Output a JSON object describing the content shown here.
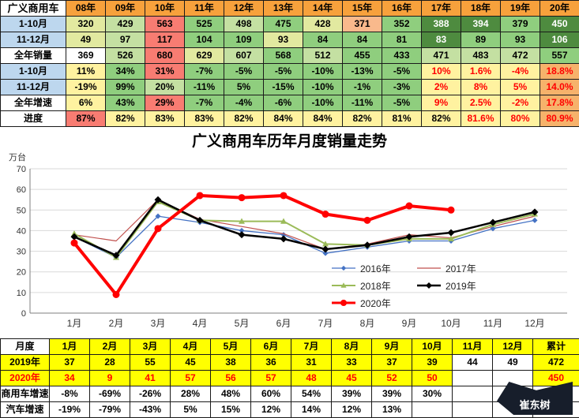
{
  "palette": {
    "dkgreen": "#4e8b3f",
    "green": "#8fce7e",
    "ltgreen": "#c4e0a2",
    "ylgreen": "#e2e9a0",
    "yellow": "#fff2a0",
    "orange": "#f6b26b",
    "peach": "#f9b98c",
    "salmon": "#f87c72",
    "white": "#ffffff",
    "blue": "#bdd7ee",
    "hdr_orange": "#f7a13c",
    "table_yellow": "#ffff00"
  },
  "top_table": {
    "title_cell": "广义商用车",
    "years": [
      "08年",
      "09年",
      "10年",
      "11年",
      "12年",
      "13年",
      "14年",
      "15年",
      "16年",
      "17年",
      "18年",
      "19年",
      "20年"
    ],
    "rows": [
      {
        "label": "1-10月",
        "lbg": "blue",
        "cells": [
          [
            "320",
            "ylgreen",
            "k"
          ],
          [
            "429",
            "ltgreen",
            "k"
          ],
          [
            "563",
            "salmon",
            "k"
          ],
          [
            "525",
            "green",
            "k"
          ],
          [
            "498",
            "ltgreen",
            "k"
          ],
          [
            "475",
            "green",
            "k"
          ],
          [
            "428",
            "ylgreen",
            "k"
          ],
          [
            "371",
            "peach",
            "k"
          ],
          [
            "352",
            "green",
            "k"
          ],
          [
            "388",
            "dkgreen",
            "w"
          ],
          [
            "394",
            "dkgreen",
            "w"
          ],
          [
            "379",
            "green",
            "k"
          ],
          [
            "450",
            "dkgreen",
            "w"
          ]
        ]
      },
      {
        "label": "11-12月",
        "lbg": "blue",
        "cells": [
          [
            "49",
            "ylgreen",
            "k"
          ],
          [
            "97",
            "ltgreen",
            "k"
          ],
          [
            "117",
            "salmon",
            "k"
          ],
          [
            "104",
            "green",
            "k"
          ],
          [
            "109",
            "green",
            "k"
          ],
          [
            "93",
            "ylgreen",
            "k"
          ],
          [
            "84",
            "green",
            "k"
          ],
          [
            "84",
            "green",
            "k"
          ],
          [
            "81",
            "green",
            "k"
          ],
          [
            "83",
            "dkgreen",
            "w"
          ],
          [
            "89",
            "green",
            "k"
          ],
          [
            "93",
            "green",
            "k"
          ],
          [
            "106",
            "dkgreen",
            "w"
          ]
        ]
      },
      {
        "label": "全年销量",
        "lbg": "white",
        "cells": [
          [
            "369",
            "white",
            "k"
          ],
          [
            "526",
            "ltgreen",
            "k"
          ],
          [
            "680",
            "salmon",
            "k"
          ],
          [
            "629",
            "ylgreen",
            "k"
          ],
          [
            "607",
            "ltgreen",
            "k"
          ],
          [
            "568",
            "green",
            "k"
          ],
          [
            "512",
            "ltgreen",
            "k"
          ],
          [
            "455",
            "green",
            "k"
          ],
          [
            "433",
            "green",
            "k"
          ],
          [
            "471",
            "ltgreen",
            "k"
          ],
          [
            "483",
            "ltgreen",
            "k"
          ],
          [
            "472",
            "ltgreen",
            "k"
          ],
          [
            "557",
            "green",
            "k"
          ]
        ]
      },
      {
        "label": "1-10月",
        "lbg": "blue",
        "cells": [
          [
            "11%",
            "yellow",
            "k"
          ],
          [
            "34%",
            "green",
            "k"
          ],
          [
            "31%",
            "salmon",
            "k"
          ],
          [
            "-7%",
            "green",
            "k"
          ],
          [
            "-5%",
            "green",
            "k"
          ],
          [
            "-5%",
            "green",
            "k"
          ],
          [
            "-10%",
            "green",
            "k"
          ],
          [
            "-13%",
            "green",
            "k"
          ],
          [
            "-5%",
            "green",
            "k"
          ],
          [
            "10%",
            "yellow",
            "r"
          ],
          [
            "1.6%",
            "yellow",
            "r"
          ],
          [
            "-4%",
            "yellow",
            "r"
          ],
          [
            "18.8%",
            "orange",
            "r"
          ]
        ]
      },
      {
        "label": "11-12月",
        "lbg": "blue",
        "cells": [
          [
            "-19%",
            "yellow",
            "k"
          ],
          [
            "99%",
            "green",
            "k"
          ],
          [
            "20%",
            "ltgreen",
            "k"
          ],
          [
            "-11%",
            "green",
            "k"
          ],
          [
            "5%",
            "green",
            "k"
          ],
          [
            "-15%",
            "green",
            "k"
          ],
          [
            "-10%",
            "green",
            "k"
          ],
          [
            "-1%",
            "green",
            "k"
          ],
          [
            "-3%",
            "green",
            "k"
          ],
          [
            "2%",
            "yellow",
            "r"
          ],
          [
            "8%",
            "yellow",
            "r"
          ],
          [
            "5%",
            "yellow",
            "r"
          ],
          [
            "14.0%",
            "orange",
            "r"
          ]
        ]
      },
      {
        "label": "全年增速",
        "lbg": "white",
        "cells": [
          [
            "6%",
            "yellow",
            "k"
          ],
          [
            "43%",
            "green",
            "k"
          ],
          [
            "29%",
            "salmon",
            "k"
          ],
          [
            "-7%",
            "green",
            "k"
          ],
          [
            "-4%",
            "green",
            "k"
          ],
          [
            "-6%",
            "green",
            "k"
          ],
          [
            "-10%",
            "green",
            "k"
          ],
          [
            "-11%",
            "green",
            "k"
          ],
          [
            "-5%",
            "green",
            "k"
          ],
          [
            "9%",
            "yellow",
            "r"
          ],
          [
            "2.5%",
            "yellow",
            "r"
          ],
          [
            "-2%",
            "yellow",
            "r"
          ],
          [
            "17.8%",
            "orange",
            "r"
          ]
        ]
      },
      {
        "label": "进度",
        "lbg": "white",
        "cells": [
          [
            "87%",
            "salmon",
            "k"
          ],
          [
            "82%",
            "yellow",
            "k"
          ],
          [
            "83%",
            "yellow",
            "k"
          ],
          [
            "83%",
            "yellow",
            "k"
          ],
          [
            "82%",
            "yellow",
            "k"
          ],
          [
            "84%",
            "yellow",
            "k"
          ],
          [
            "84%",
            "yellow",
            "k"
          ],
          [
            "82%",
            "yellow",
            "k"
          ],
          [
            "81%",
            "yellow",
            "k"
          ],
          [
            "82%",
            "yellow",
            "k"
          ],
          [
            "81.6%",
            "yellow",
            "r"
          ],
          [
            "80%",
            "yellow",
            "r"
          ],
          [
            "80.9%",
            "orange",
            "r"
          ]
        ]
      }
    ]
  },
  "chart_data": {
    "type": "line",
    "title": "广义商用车历年月度销量走势",
    "y_unit": "万台",
    "x_labels": [
      "1月",
      "2月",
      "3月",
      "4月",
      "5月",
      "6月",
      "7月",
      "8月",
      "9月",
      "10月",
      "11月",
      "12月"
    ],
    "ylim": [
      0,
      70
    ],
    "ytick_step": 10,
    "grid": true,
    "legend_position": "inside-lower-right",
    "series": [
      {
        "name": "2016年",
        "color": "#4472c4",
        "width": 1.3,
        "marker": "diamond",
        "marker_size": 3.5,
        "values": [
          37,
          27,
          47,
          44,
          40,
          38,
          29,
          32,
          35,
          35,
          41,
          45
        ]
      },
      {
        "name": "2017年",
        "color": "#c0504d",
        "width": 1.2,
        "marker": "none",
        "marker_size": 0,
        "values": [
          38,
          35,
          55,
          45.5,
          42,
          38.5,
          31,
          33.5,
          38,
          36.5,
          42,
          47
        ]
      },
      {
        "name": "2018年",
        "color": "#9bbb59",
        "width": 2,
        "marker": "triangle",
        "marker_size": 4.2,
        "values": [
          38.5,
          27,
          54,
          45,
          44.5,
          44.5,
          33.5,
          33,
          36,
          36,
          43,
          48
        ]
      },
      {
        "name": "2019年",
        "color": "#000000",
        "width": 2.5,
        "marker": "diamond",
        "marker_size": 4.5,
        "values": [
          37,
          28,
          55,
          45,
          38,
          36,
          31,
          33,
          37,
          39,
          44,
          49
        ]
      },
      {
        "name": "2020年",
        "color": "#ff0000",
        "width": 4,
        "marker": "circle",
        "marker_size": 4.5,
        "values": [
          34,
          9,
          41,
          57,
          56,
          57,
          48,
          45,
          52,
          50
        ]
      }
    ]
  },
  "bottom_table": {
    "header": [
      "月度",
      "1月",
      "2月",
      "3月",
      "4月",
      "5月",
      "6月",
      "7月",
      "8月",
      "9月",
      "10月",
      "11月",
      "12月",
      "累计"
    ],
    "rows": [
      {
        "label": "2019年",
        "lbg": "y",
        "fg": "k",
        "values": [
          "37",
          "28",
          "55",
          "45",
          "38",
          "36",
          "31",
          "33",
          "37",
          "39",
          "44",
          "49",
          "472"
        ],
        "bgs": [
          "y",
          "y",
          "y",
          "y",
          "y",
          "y",
          "y",
          "y",
          "y",
          "y",
          "w",
          "w",
          "y"
        ]
      },
      {
        "label": "2020年",
        "lbg": "y",
        "fg": "r",
        "values": [
          "34",
          "9",
          "41",
          "57",
          "56",
          "57",
          "48",
          "45",
          "52",
          "50",
          "",
          "",
          "450"
        ],
        "bgs": [
          "y",
          "y",
          "y",
          "y",
          "y",
          "y",
          "y",
          "y",
          "y",
          "y",
          "w",
          "w",
          "y"
        ]
      },
      {
        "label": "商用车增速",
        "lbg": "w",
        "fg": "k",
        "values": [
          "-8%",
          "-69%",
          "-26%",
          "28%",
          "48%",
          "60%",
          "54%",
          "39%",
          "39%",
          "30%",
          "",
          "",
          ""
        ],
        "bgs": [
          "w",
          "w",
          "w",
          "w",
          "w",
          "w",
          "w",
          "w",
          "w",
          "w",
          "w",
          "w",
          "w"
        ]
      },
      {
        "label": "汽车增速",
        "lbg": "w",
        "fg": "k",
        "values": [
          "-19%",
          "-79%",
          "-43%",
          "5%",
          "15%",
          "12%",
          "14%",
          "12%",
          "13%",
          "",
          "",
          "",
          ""
        ],
        "bgs": [
          "w",
          "w",
          "w",
          "w",
          "w",
          "w",
          "w",
          "w",
          "w",
          "w",
          "w",
          "w",
          "w"
        ]
      }
    ]
  },
  "watermark": {
    "text": "崔东树"
  }
}
